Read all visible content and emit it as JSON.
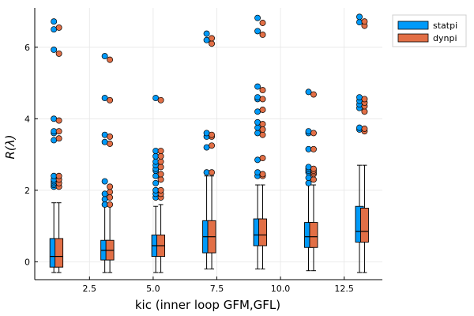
{
  "chart_data": {
    "type": "box",
    "xlabel": "kic (inner loop GFM,GFL)",
    "ylabel": "R(λ)",
    "xlim": [
      0.35,
      14.0
    ],
    "ylim": [
      -0.5,
      7.1
    ],
    "x_ticks": [
      2.5,
      5.0,
      7.5,
      10.0,
      12.5
    ],
    "x_tick_labels": [
      "2.5",
      "5.0",
      "7.5",
      "10.0",
      "12.5"
    ],
    "y_ticks": [
      0,
      2,
      4,
      6
    ],
    "y_tick_labels": [
      "0",
      "2",
      "4",
      "6"
    ],
    "grid": true,
    "legend_position": "top-right",
    "series": [
      {
        "name": "statpi",
        "color": "#009af9",
        "boxes": [
          {
            "x": 1.1,
            "whisker_low": -0.3,
            "q1": -0.15,
            "median": 0.15,
            "q3": 0.65,
            "whisker_high": 1.65,
            "outliers": [
              2.1,
              2.15,
              2.2,
              2.25,
              2.3,
              2.4,
              3.4,
              3.6,
              3.65,
              4.0,
              5.93,
              6.5,
              6.72
            ]
          },
          {
            "x": 3.1,
            "whisker_low": -0.3,
            "q1": 0.05,
            "median": 0.32,
            "q3": 0.6,
            "whisker_high": 1.55,
            "outliers": [
              1.6,
              1.75,
              1.9,
              2.25,
              3.35,
              3.55,
              4.58,
              5.75
            ]
          },
          {
            "x": 5.1,
            "whisker_low": -0.3,
            "q1": 0.15,
            "median": 0.45,
            "q3": 0.75,
            "whisker_high": 1.55,
            "outliers": [
              1.8,
              1.9,
              2.0,
              2.2,
              2.4,
              2.55,
              2.6,
              2.7,
              2.8,
              2.95,
              3.1,
              4.58
            ]
          },
          {
            "x": 7.1,
            "whisker_low": -0.2,
            "q1": 0.25,
            "median": 0.7,
            "q3": 1.15,
            "whisker_high": 2.4,
            "outliers": [
              2.5,
              3.2,
              3.5,
              3.6,
              6.2,
              6.38
            ]
          },
          {
            "x": 9.1,
            "whisker_low": -0.2,
            "q1": 0.45,
            "median": 0.75,
            "q3": 1.2,
            "whisker_high": 2.15,
            "outliers": [
              2.4,
              2.5,
              2.85,
              3.6,
              3.75,
              3.9,
              4.2,
              4.55,
              4.6,
              4.9,
              6.45,
              6.82
            ]
          },
          {
            "x": 11.1,
            "whisker_low": -0.25,
            "q1": 0.4,
            "median": 0.7,
            "q3": 1.1,
            "whisker_high": 2.15,
            "outliers": [
              2.2,
              2.35,
              2.5,
              2.55,
              2.6,
              2.65,
              3.15,
              3.6,
              3.65,
              4.75
            ]
          },
          {
            "x": 13.1,
            "whisker_low": -0.3,
            "q1": 0.55,
            "median": 0.85,
            "q3": 1.55,
            "whisker_high": 2.7,
            "outliers": [
              3.7,
              3.75,
              4.3,
              4.4,
              4.5,
              4.6,
              6.7,
              6.85
            ]
          }
        ]
      },
      {
        "name": "dynpi",
        "color": "#e26f46",
        "boxes": [
          {
            "x": 1.3,
            "whisker_low": -0.3,
            "q1": -0.15,
            "median": 0.15,
            "q3": 0.65,
            "whisker_high": 1.65,
            "outliers": [
              2.1,
              2.2,
              2.3,
              2.4,
              3.45,
              3.65,
              3.95,
              5.82,
              6.55
            ]
          },
          {
            "x": 3.3,
            "whisker_low": -0.3,
            "q1": 0.05,
            "median": 0.32,
            "q3": 0.6,
            "whisker_high": 1.55,
            "outliers": [
              1.6,
              1.8,
              1.95,
              2.1,
              3.3,
              3.5,
              4.52,
              5.65
            ]
          },
          {
            "x": 5.3,
            "whisker_low": -0.3,
            "q1": 0.15,
            "median": 0.45,
            "q3": 0.75,
            "whisker_high": 1.6,
            "outliers": [
              1.8,
              1.9,
              2.0,
              2.3,
              2.45,
              2.65,
              2.8,
              2.95,
              3.1,
              4.52
            ]
          },
          {
            "x": 7.3,
            "whisker_low": -0.2,
            "q1": 0.25,
            "median": 0.7,
            "q3": 1.15,
            "whisker_high": 2.4,
            "outliers": [
              2.5,
              3.25,
              3.5,
              3.55,
              6.1,
              6.25
            ]
          },
          {
            "x": 9.3,
            "whisker_low": -0.2,
            "q1": 0.45,
            "median": 0.75,
            "q3": 1.2,
            "whisker_high": 2.15,
            "outliers": [
              2.4,
              2.45,
              2.9,
              3.55,
              3.7,
              3.85,
              4.25,
              4.55,
              4.8,
              6.35,
              6.68
            ]
          },
          {
            "x": 11.3,
            "whisker_low": -0.25,
            "q1": 0.4,
            "median": 0.7,
            "q3": 1.1,
            "whisker_high": 2.15,
            "outliers": [
              2.3,
              2.45,
              2.5,
              2.55,
              2.6,
              3.15,
              3.6,
              4.68
            ]
          },
          {
            "x": 13.3,
            "whisker_low": -0.3,
            "q1": 0.55,
            "median": 0.85,
            "q3": 1.5,
            "whisker_high": 2.7,
            "outliers": [
              3.65,
              3.72,
              4.2,
              4.35,
              4.45,
              4.55,
              6.6,
              6.72
            ]
          }
        ]
      }
    ]
  }
}
